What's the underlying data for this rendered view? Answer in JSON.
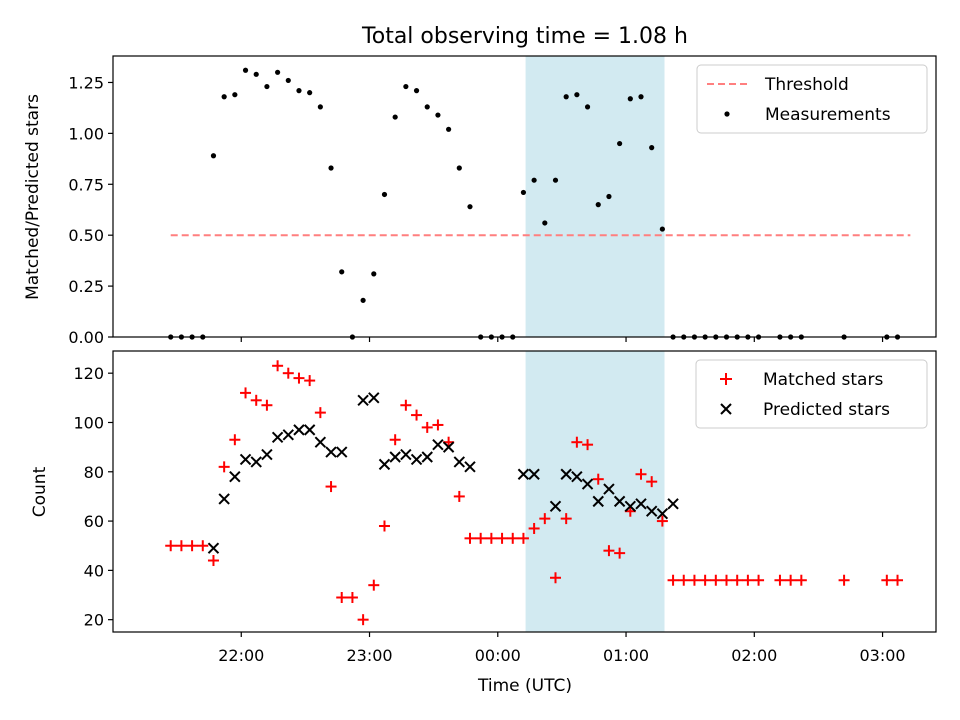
{
  "chart_data": [
    {
      "type": "scatter",
      "title": "Total observing time = 1.08 h",
      "xlabel": "",
      "ylabel": "Matched/Predicted stars",
      "ylim": [
        0,
        1.38
      ],
      "yticks": [
        0.0,
        0.25,
        0.5,
        0.75,
        1.0,
        1.25
      ],
      "ytick_labels": [
        "0.00",
        "0.25",
        "0.50",
        "0.75",
        "1.00",
        "1.25"
      ],
      "xlim": [
        "21:00",
        "03:25"
      ],
      "xticks": [
        "22:00",
        "23:00",
        "00:00",
        "01:00",
        "02:00",
        "03:00"
      ],
      "xtick_labels_shown": false,
      "grid": false,
      "shaded_interval": {
        "start": "00:13",
        "end": "01:18",
        "color": "#add8e6"
      },
      "legend": {
        "position": "top-right",
        "entries": [
          "Threshold",
          "Measurements"
        ]
      },
      "threshold": {
        "name": "Threshold",
        "value": 0.5,
        "x_start": "21:27",
        "x_end": "03:13",
        "color": "#ff7f7f",
        "style": "dashed"
      },
      "series": [
        {
          "name": "Measurements",
          "color": "#000000",
          "marker": "dot",
          "points": [
            [
              "21:27",
              0
            ],
            [
              "21:32",
              0
            ],
            [
              "21:37",
              0
            ],
            [
              "21:42",
              0
            ],
            [
              "21:47",
              0.89
            ],
            [
              "21:52",
              1.18
            ],
            [
              "21:57",
              1.19
            ],
            [
              "22:02",
              1.31
            ],
            [
              "22:07",
              1.29
            ],
            [
              "22:12",
              1.23
            ],
            [
              "22:17",
              1.3
            ],
            [
              "22:22",
              1.26
            ],
            [
              "22:27",
              1.21
            ],
            [
              "22:32",
              1.2
            ],
            [
              "22:37",
              1.13
            ],
            [
              "22:42",
              0.83
            ],
            [
              "22:47",
              0.32
            ],
            [
              "22:52",
              0
            ],
            [
              "22:57",
              0.18
            ],
            [
              "23:02",
              0.31
            ],
            [
              "23:07",
              0.7
            ],
            [
              "23:12",
              1.08
            ],
            [
              "23:17",
              1.23
            ],
            [
              "23:22",
              1.21
            ],
            [
              "23:27",
              1.13
            ],
            [
              "23:32",
              1.09
            ],
            [
              "23:37",
              1.02
            ],
            [
              "23:42",
              0.83
            ],
            [
              "23:47",
              0.64
            ],
            [
              "23:52",
              0
            ],
            [
              "23:57",
              0
            ],
            [
              "00:02",
              0
            ],
            [
              "00:07",
              0
            ],
            [
              "00:12",
              0.71
            ],
            [
              "00:17",
              0.77
            ],
            [
              "00:22",
              0.56
            ],
            [
              "00:27",
              0.77
            ],
            [
              "00:32",
              1.18
            ],
            [
              "00:37",
              1.19
            ],
            [
              "00:42",
              1.13
            ],
            [
              "00:47",
              0.65
            ],
            [
              "00:52",
              0.69
            ],
            [
              "00:57",
              0.95
            ],
            [
              "01:02",
              1.17
            ],
            [
              "01:07",
              1.18
            ],
            [
              "01:12",
              0.93
            ],
            [
              "01:17",
              0.53
            ],
            [
              "01:22",
              0
            ],
            [
              "01:27",
              0
            ],
            [
              "01:32",
              0
            ],
            [
              "01:37",
              0
            ],
            [
              "01:42",
              0
            ],
            [
              "01:47",
              0
            ],
            [
              "01:52",
              0
            ],
            [
              "01:57",
              0
            ],
            [
              "02:02",
              0
            ],
            [
              "02:12",
              0
            ],
            [
              "02:17",
              0
            ],
            [
              "02:22",
              0
            ],
            [
              "02:42",
              0
            ],
            [
              "03:02",
              0
            ],
            [
              "03:07",
              0
            ]
          ]
        }
      ]
    },
    {
      "type": "scatter",
      "title": "",
      "xlabel": "Time (UTC)",
      "ylabel": "Count",
      "ylim": [
        15,
        129
      ],
      "yticks": [
        20,
        40,
        60,
        80,
        100,
        120
      ],
      "xlim": [
        "21:00",
        "03:25"
      ],
      "xticks": [
        "22:00",
        "23:00",
        "00:00",
        "01:00",
        "02:00",
        "03:00"
      ],
      "grid": false,
      "shaded_interval": {
        "start": "00:13",
        "end": "01:18",
        "color": "#add8e6"
      },
      "legend": {
        "position": "top-right",
        "entries": [
          "Matched stars",
          "Predicted stars"
        ]
      },
      "series": [
        {
          "name": "Matched stars",
          "color": "#ff0000",
          "marker": "plus",
          "points": [
            [
              "21:27",
              50
            ],
            [
              "21:32",
              50
            ],
            [
              "21:37",
              50
            ],
            [
              "21:42",
              50
            ],
            [
              "21:47",
              44
            ],
            [
              "21:52",
              82
            ],
            [
              "21:57",
              93
            ],
            [
              "22:02",
              112
            ],
            [
              "22:07",
              109
            ],
            [
              "22:12",
              107
            ],
            [
              "22:17",
              123
            ],
            [
              "22:22",
              120
            ],
            [
              "22:27",
              118
            ],
            [
              "22:32",
              117
            ],
            [
              "22:37",
              104
            ],
            [
              "22:42",
              74
            ],
            [
              "22:47",
              29
            ],
            [
              "22:52",
              29
            ],
            [
              "22:57",
              20
            ],
            [
              "23:02",
              34
            ],
            [
              "23:07",
              58
            ],
            [
              "23:12",
              93
            ],
            [
              "23:17",
              107
            ],
            [
              "23:22",
              103
            ],
            [
              "23:27",
              98
            ],
            [
              "23:32",
              99
            ],
            [
              "23:37",
              92
            ],
            [
              "23:42",
              70
            ],
            [
              "23:47",
              53
            ],
            [
              "23:52",
              53
            ],
            [
              "23:57",
              53
            ],
            [
              "00:02",
              53
            ],
            [
              "00:07",
              53
            ],
            [
              "00:12",
              53
            ],
            [
              "00:17",
              57
            ],
            [
              "00:22",
              61
            ],
            [
              "00:27",
              37
            ],
            [
              "00:32",
              61
            ],
            [
              "00:37",
              92
            ],
            [
              "00:42",
              91
            ],
            [
              "00:47",
              77
            ],
            [
              "00:52",
              48
            ],
            [
              "00:57",
              47
            ],
            [
              "01:02",
              64
            ],
            [
              "01:07",
              79
            ],
            [
              "01:12",
              76
            ],
            [
              "01:17",
              60
            ],
            [
              "01:22",
              36
            ],
            [
              "01:27",
              36
            ],
            [
              "01:32",
              36
            ],
            [
              "01:37",
              36
            ],
            [
              "01:42",
              36
            ],
            [
              "01:47",
              36
            ],
            [
              "01:52",
              36
            ],
            [
              "01:57",
              36
            ],
            [
              "02:02",
              36
            ],
            [
              "02:12",
              36
            ],
            [
              "02:17",
              36
            ],
            [
              "02:22",
              36
            ],
            [
              "02:42",
              36
            ],
            [
              "03:02",
              36
            ],
            [
              "03:07",
              36
            ]
          ]
        },
        {
          "name": "Predicted stars",
          "color": "#000000",
          "marker": "x",
          "points": [
            [
              "21:47",
              49
            ],
            [
              "21:52",
              69
            ],
            [
              "21:57",
              78
            ],
            [
              "22:02",
              85
            ],
            [
              "22:07",
              84
            ],
            [
              "22:12",
              87
            ],
            [
              "22:17",
              94
            ],
            [
              "22:22",
              95
            ],
            [
              "22:27",
              97
            ],
            [
              "22:32",
              97
            ],
            [
              "22:37",
              92
            ],
            [
              "22:42",
              88
            ],
            [
              "22:47",
              88
            ],
            [
              "22:57",
              109
            ],
            [
              "23:02",
              110
            ],
            [
              "23:07",
              83
            ],
            [
              "23:12",
              86
            ],
            [
              "23:17",
              87
            ],
            [
              "23:22",
              85
            ],
            [
              "23:27",
              86
            ],
            [
              "23:32",
              91
            ],
            [
              "23:37",
              90
            ],
            [
              "23:42",
              84
            ],
            [
              "23:47",
              82
            ],
            [
              "00:12",
              79
            ],
            [
              "00:17",
              79
            ],
            [
              "00:27",
              66
            ],
            [
              "00:32",
              79
            ],
            [
              "00:37",
              78
            ],
            [
              "00:42",
              75
            ],
            [
              "00:47",
              68
            ],
            [
              "00:52",
              73
            ],
            [
              "00:57",
              68
            ],
            [
              "01:02",
              66
            ],
            [
              "01:07",
              67
            ],
            [
              "01:12",
              64
            ],
            [
              "01:17",
              63
            ],
            [
              "01:22",
              67
            ]
          ]
        }
      ]
    }
  ]
}
